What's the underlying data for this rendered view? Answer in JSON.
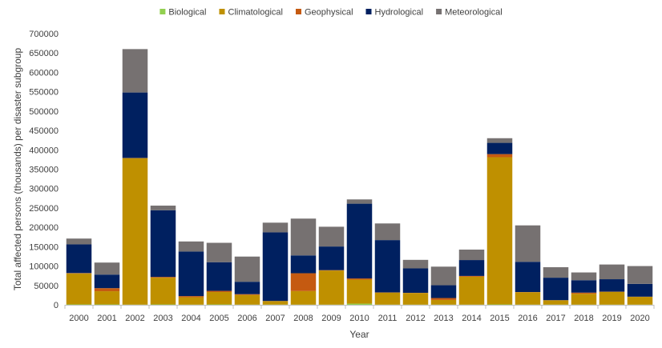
{
  "chart_data": {
    "type": "bar",
    "stacked": true,
    "title": "",
    "xlabel": "Year",
    "ylabel": "Total affected persons (thousands) per disaster subgroup",
    "ylim": [
      0,
      700000
    ],
    "yticks": [
      0,
      50000,
      100000,
      150000,
      200000,
      250000,
      300000,
      350000,
      400000,
      450000,
      500000,
      550000,
      600000,
      650000,
      700000
    ],
    "grid": false,
    "legend_position": "top",
    "categories": [
      "2000",
      "2001",
      "2002",
      "2003",
      "2004",
      "2005",
      "2006",
      "2007",
      "2008",
      "2009",
      "2010",
      "2011",
      "2012",
      "2013",
      "2014",
      "2015",
      "2016",
      "2017",
      "2018",
      "2019",
      "2020"
    ],
    "series": [
      {
        "name": "Biological",
        "color": "#92d050",
        "values": [
          1000,
          1000,
          500,
          1000,
          500,
          1000,
          500,
          500,
          500,
          500,
          3000,
          500,
          500,
          500,
          500,
          1000,
          500,
          500,
          500,
          500,
          500
        ]
      },
      {
        "name": "Climatological",
        "color": "#bf9000",
        "values": [
          80000,
          34000,
          378000,
          69000,
          19000,
          32000,
          25000,
          9000,
          35000,
          88000,
          62000,
          31000,
          30000,
          12000,
          72000,
          380000,
          32000,
          11000,
          28000,
          33000,
          20000
        ]
      },
      {
        "name": "Geophysical",
        "color": "#c55a11",
        "values": [
          1000,
          8000,
          500,
          2000,
          3000,
          3000,
          2000,
          500,
          46000,
          1000,
          3000,
          500,
          500,
          5000,
          2000,
          8000,
          500,
          500,
          3000,
          500,
          500
        ]
      },
      {
        "name": "Hydrological",
        "color": "#002060",
        "values": [
          74000,
          35000,
          169000,
          172000,
          115000,
          74000,
          32000,
          177000,
          46000,
          61000,
          193000,
          135000,
          63000,
          33000,
          41000,
          29000,
          78000,
          58000,
          32000,
          32000,
          33000
        ]
      },
      {
        "name": "Meteorological",
        "color": "#767171",
        "values": [
          15000,
          31000,
          112000,
          12000,
          26000,
          50000,
          65000,
          25000,
          95000,
          51000,
          11000,
          43000,
          22000,
          48000,
          27000,
          12000,
          94000,
          27000,
          20000,
          38000,
          46000
        ]
      }
    ]
  }
}
